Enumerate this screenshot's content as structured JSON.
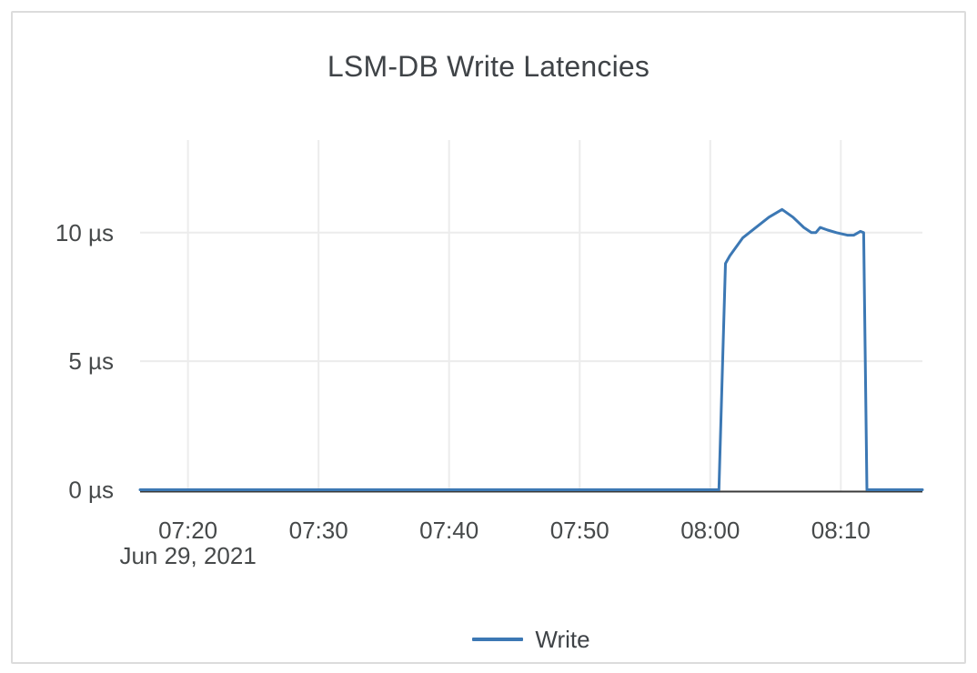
{
  "card": {
    "background": "#ffffff",
    "border_color": "#dcdcdc"
  },
  "colors": {
    "grid": "#ececec",
    "axis_line": "#3a3a3a",
    "title_text": "#3f4347",
    "tick_text": "#46494a"
  },
  "chart_data": {
    "type": "line",
    "title": "LSM-DB Write Latencies",
    "x_axis": {
      "date_label": "Jun 29, 2021",
      "range": [
        "07:16:20",
        "08:16:15"
      ],
      "ticks": [
        "07:20",
        "07:30",
        "07:40",
        "07:50",
        "08:00",
        "08:10"
      ]
    },
    "y_axis": {
      "unit": "µs",
      "range": [
        0,
        13.6
      ],
      "ticks": [
        {
          "value": 0,
          "label": "0 µs"
        },
        {
          "value": 5,
          "label": "5 µs"
        },
        {
          "value": 10,
          "label": "10 µs"
        }
      ]
    },
    "grid": true,
    "legend_position": "bottom",
    "series": [
      {
        "name": "Write",
        "color": "#3c78b4",
        "line_width": 3,
        "points": [
          [
            "07:16:20",
            0
          ],
          [
            "08:00:40",
            0
          ],
          [
            "08:01:10",
            8.8
          ],
          [
            "08:01:30",
            9.1
          ],
          [
            "08:02:30",
            9.8
          ],
          [
            "08:03:30",
            10.2
          ],
          [
            "08:04:30",
            10.6
          ],
          [
            "08:05:30",
            10.9
          ],
          [
            "08:06:20",
            10.6
          ],
          [
            "08:07:10",
            10.2
          ],
          [
            "08:07:45",
            10.0
          ],
          [
            "08:08:05",
            10.0
          ],
          [
            "08:08:25",
            10.2
          ],
          [
            "08:09:00",
            10.1
          ],
          [
            "08:09:40",
            10.0
          ],
          [
            "08:10:30",
            9.9
          ],
          [
            "08:11:00",
            9.9
          ],
          [
            "08:11:30",
            10.05
          ],
          [
            "08:11:45",
            10.0
          ],
          [
            "08:12:00",
            0
          ],
          [
            "08:16:15",
            0
          ]
        ]
      }
    ]
  },
  "legend": {
    "items": [
      {
        "label": "Write",
        "color": "#3c78b4"
      }
    ]
  }
}
